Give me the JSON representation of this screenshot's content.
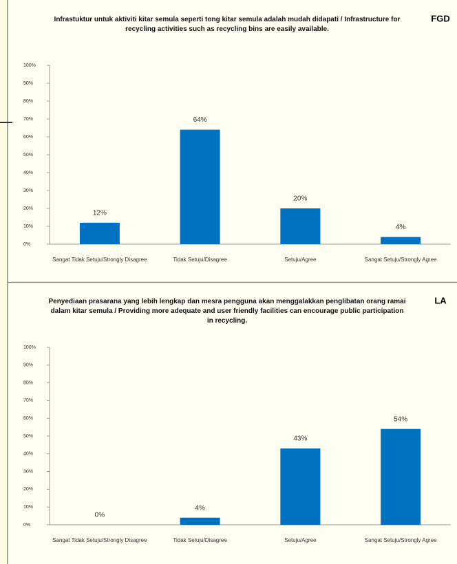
{
  "chart_data": [
    {
      "type": "bar",
      "annotation": "FGD",
      "title": "Infrastuktur untuk aktiviti kitar semula seperti tong kitar semula adalah mudah didapati / Infrastructure for recycling activities such as recycling bins are easily available.",
      "categories": [
        "Sangat Tidak Setuju/Strongly Disagree",
        "Tidak Setuju/Disagree",
        "Setuju/Agree",
        "Sangat Setuju/Strongly Agree"
      ],
      "values": [
        12,
        64,
        20,
        4
      ],
      "value_labels": [
        "12%",
        "64%",
        "20%",
        "4%"
      ],
      "color": "#0070c0",
      "ylim": [
        0,
        100
      ],
      "yticks": [
        {
          "value": 0,
          "label": "0%"
        },
        {
          "value": 10,
          "label": "10%"
        },
        {
          "value": 20,
          "label": "20%"
        },
        {
          "value": 30,
          "label": "30%"
        },
        {
          "value": 40,
          "label": "40%"
        },
        {
          "value": 50,
          "label": "50%"
        },
        {
          "value": 60,
          "label": "60%"
        },
        {
          "value": 70,
          "label": "70%"
        },
        {
          "value": 80,
          "label": "80%"
        },
        {
          "value": 90,
          "label": "90%"
        },
        {
          "value": 100,
          "label": "100%"
        }
      ]
    },
    {
      "type": "bar",
      "annotation": "LA",
      "title": "Penyediaan prasarana yang lebih lengkap dan mesra pengguna akan menggalakkan penglibatan orang ramai dalam kitar semula / Providing more adequate and user friendly facilities can encourage public participation in recycling.",
      "categories": [
        "Sangat Tidak Setuju/Strongly Disagree",
        "Tidak Setuju/Disagree",
        "Setuju/Agree",
        "Sangat Setuju/Strongly Agree"
      ],
      "values": [
        0,
        4,
        43,
        54
      ],
      "value_labels": [
        "0%",
        "4%",
        "43%",
        "54%"
      ],
      "color": "#0070c0",
      "ylim": [
        0,
        100
      ],
      "yticks": [
        {
          "value": 0,
          "label": "0%"
        },
        {
          "value": 10,
          "label": "10%"
        },
        {
          "value": 20,
          "label": "20%"
        },
        {
          "value": 30,
          "label": "30%"
        },
        {
          "value": 40,
          "label": "40%"
        },
        {
          "value": 50,
          "label": "50%"
        },
        {
          "value": 60,
          "label": "60%"
        },
        {
          "value": 70,
          "label": "70%"
        },
        {
          "value": 80,
          "label": "80%"
        },
        {
          "value": 90,
          "label": "90%"
        },
        {
          "value": 100,
          "label": "100%"
        }
      ]
    }
  ]
}
